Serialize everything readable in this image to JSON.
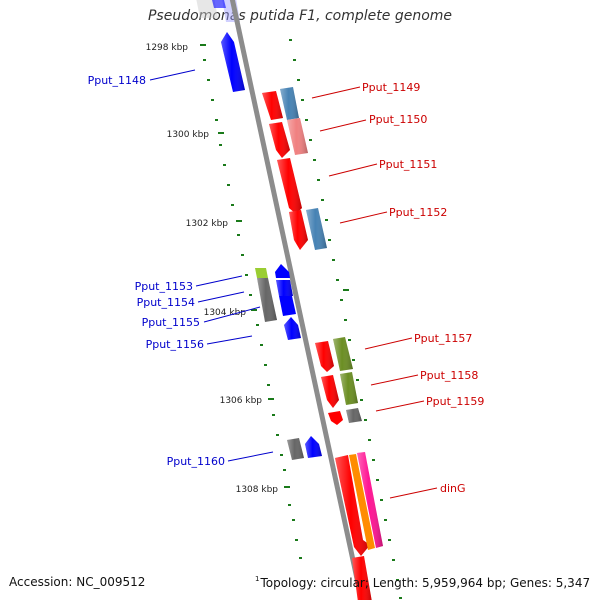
{
  "title": "Pseudomonas putida F1, complete genome",
  "footer": {
    "accession": "Accession: NC_009512",
    "superscript": "1",
    "info": "Topology: circular; Length: 5,959,964 bp; Genes: 5,347"
  },
  "colors": {
    "backbone": "#8c8c8c",
    "tick": "#1a7a1a",
    "left_label": "#0000cc",
    "right_label": "#cc0000",
    "red": "#ff0000",
    "blue": "#0000ff",
    "steelblue": "#4682b4",
    "salmon": "#f08080",
    "olive": "#6b8e23",
    "gray": "#666666",
    "yellowgreen": "#9acd32",
    "orange": "#ff8c00",
    "magenta": "#ff1493"
  },
  "scale_labels": [
    "1298 kbp",
    "1300 kbp",
    "1302 kbp",
    "1304 kbp",
    "1306 kbp",
    "1308 kbp"
  ],
  "left_labels": [
    "Pput_1148",
    "Pput_1153",
    "Pput_1154",
    "Pput_1155",
    "Pput_1156",
    "Pput_1160"
  ],
  "right_labels": [
    "Pput_1149",
    "Pput_1150",
    "Pput_1151",
    "Pput_1152",
    "Pput_1157",
    "Pput_1158",
    "Pput_1159",
    "dinG"
  ]
}
